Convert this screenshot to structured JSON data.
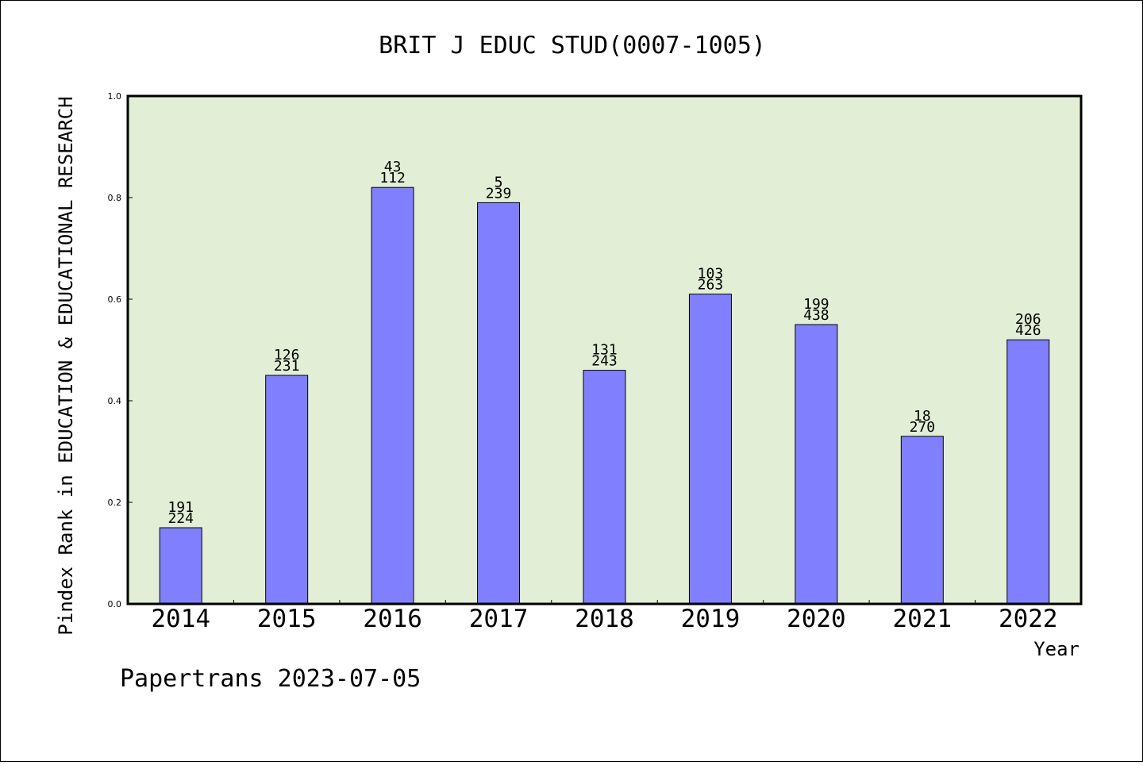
{
  "chart_data": {
    "type": "bar",
    "title": "BRIT J EDUC STUD(0007-1005)",
    "ylabel": "Pindex Rank in EDUCATION & EDUCATIONAL RESEARCH",
    "xlabel": "Year",
    "footer": "Papertrans 2023-07-05",
    "ylim": [
      0,
      1.0
    ],
    "yticks": [
      "0.0",
      "0.2",
      "0.4",
      "0.6",
      "0.8",
      "1.0"
    ],
    "categories": [
      "2014",
      "2015",
      "2016",
      "2017",
      "2018",
      "2019",
      "2020",
      "2021",
      "2022"
    ],
    "values": [
      0.15,
      0.45,
      0.82,
      0.79,
      0.46,
      0.61,
      0.55,
      0.33,
      0.52
    ],
    "rank_labels": [
      "191",
      "126",
      "43",
      "5",
      "131",
      "103",
      "199",
      "18",
      "206"
    ],
    "total_labels": [
      "224",
      "231",
      "112",
      "239",
      "243",
      "263",
      "438",
      "270",
      "426"
    ],
    "colors": {
      "plot_background": "#e2efd6",
      "bar_fill": "#8080ff",
      "bar_stroke": "#000000"
    }
  }
}
